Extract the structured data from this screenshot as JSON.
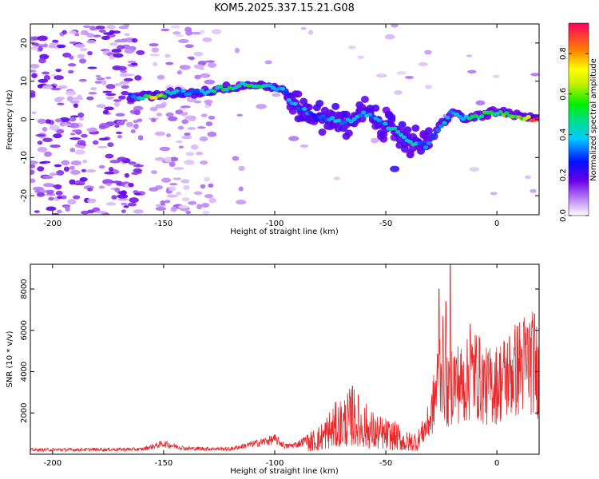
{
  "title": "KOM5.2025.337.15.21.G08",
  "chart_data": [
    {
      "type": "heatmap",
      "name": "spectrogram",
      "xlabel": "Height of straight line (km)",
      "ylabel": "Frequency (Hz)",
      "xlim": [
        -210,
        19
      ],
      "ylim": [
        -25,
        25
      ],
      "xticks": [
        -200,
        -150,
        -100,
        -50,
        0
      ],
      "yticks": [
        -20,
        -10,
        0,
        10,
        20
      ],
      "colorbar": {
        "label": "Normalized spectral amplitude",
        "range": [
          0,
          0.95
        ],
        "ticks": [
          "0.0",
          "0.2",
          "0.4",
          "0.6",
          "0.8"
        ],
        "tick_values": [
          0.0,
          0.2,
          0.4,
          0.6,
          0.8
        ]
      },
      "ridge": {
        "x": [
          -165,
          -155,
          -145,
          -135,
          -125,
          -115,
          -105,
          -97,
          -90,
          -82,
          -75,
          -68,
          -60,
          -52,
          -45,
          -38,
          -32,
          -26,
          -20,
          -15,
          -8,
          0,
          8,
          19
        ],
        "freq": [
          6,
          6,
          7,
          7,
          8,
          9,
          9,
          8,
          3,
          1,
          0,
          -1,
          2,
          -1,
          -3,
          -6,
          -7,
          -2,
          2,
          0,
          1,
          2,
          1,
          0
        ],
        "amp": [
          0.3,
          0.75,
          0.4,
          0.35,
          0.55,
          0.55,
          0.5,
          0.4,
          0.4,
          0.35,
          0.4,
          0.45,
          0.4,
          0.4,
          0.5,
          0.45,
          0.35,
          0.4,
          0.45,
          0.5,
          0.55,
          0.6,
          0.7,
          0.95
        ]
      }
    },
    {
      "type": "line",
      "name": "snr",
      "xlabel": "Height of straight line (km)",
      "ylabel": "SNR (10 * v/v)",
      "xlim": [
        -210,
        19
      ],
      "ylim": [
        0,
        9200
      ],
      "xticks": [
        -200,
        -150,
        -100,
        -50,
        0
      ],
      "yticks": [
        2000,
        4000,
        6000,
        8000
      ],
      "color": "#e8282b",
      "envelope": {
        "x": [
          -210,
          -160,
          -150,
          -140,
          -120,
          -100,
          -95,
          -90,
          -80,
          -75,
          -65,
          -60,
          -55,
          -50,
          -45,
          -40,
          -35,
          -30,
          -27,
          -25,
          -22,
          -20,
          -15,
          -10,
          -5,
          0,
          5,
          10,
          15,
          19
        ],
        "y": [
          250,
          280,
          600,
          330,
          300,
          850,
          450,
          550,
          1200,
          1900,
          2800,
          2200,
          1700,
          1500,
          1300,
          900,
          1100,
          2300,
          4500,
          6400,
          3800,
          5000,
          4600,
          5500,
          4500,
          4700,
          5300,
          5800,
          6300,
          5500
        ]
      },
      "spikes": [
        {
          "x": -65,
          "y": 3300
        },
        {
          "x": -26,
          "y": 8000
        },
        {
          "x": -23,
          "y": 7400
        },
        {
          "x": -21,
          "y": 9200
        },
        {
          "x": -12,
          "y": 6300
        },
        {
          "x": 17,
          "y": 6800
        }
      ]
    }
  ]
}
